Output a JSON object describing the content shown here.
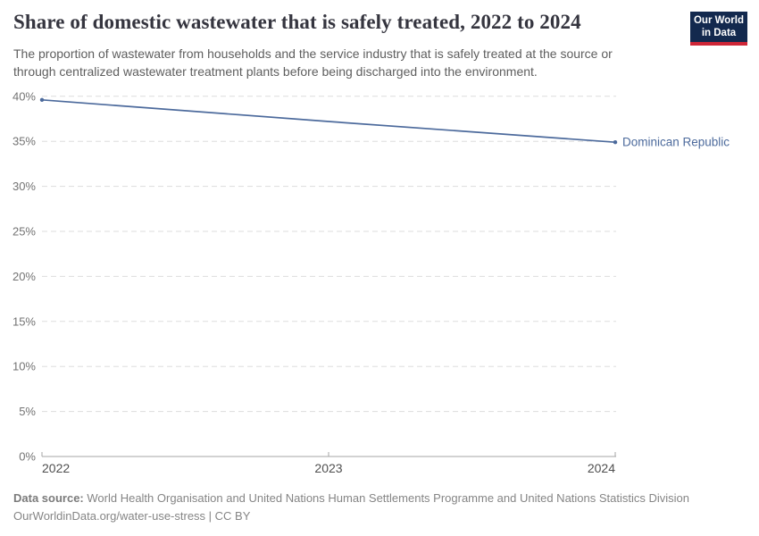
{
  "header": {
    "title": "Share of domestic wastewater that is safely treated, 2022 to 2024",
    "subtitle_line1": "The proportion of wastewater from households and the service industry that is safely treated at the source or",
    "subtitle_line2": "through centralized wastewater treatment plants before being discharged into the environment."
  },
  "logo": {
    "line1": "Our World",
    "line2": "in Data"
  },
  "chart_data": {
    "type": "line",
    "title": "Share of domestic wastewater that is safely treated",
    "x": [
      2022,
      2023,
      2024
    ],
    "series": [
      {
        "name": "Dominican Republic",
        "values": [
          39.6,
          37.2,
          34.9
        ],
        "color": "#4C6A9C"
      }
    ],
    "ylim": [
      0,
      40
    ],
    "yticks": [
      0,
      5,
      10,
      15,
      20,
      25,
      30,
      35,
      40
    ],
    "ytick_suffix": "%",
    "xticks": [
      2022,
      2023,
      2024
    ],
    "grid": "horizontal-dashed",
    "legend": "end-of-line-label"
  },
  "footer": {
    "source_label": "Data source:",
    "source_text": "World Health Organisation and United Nations Human Settlements Programme and United Nations Statistics Division",
    "citation": "OurWorldinData.org/water-use-stress | CC BY"
  },
  "colors": {
    "line": "#4C6A9C",
    "grid": "#DDDDDD",
    "axis": "#A5A5A5",
    "ytick_text": "#737373",
    "xtick_text": "#4F4F4F",
    "logo_bg": "#13294E",
    "logo_red": "#CE2637"
  }
}
